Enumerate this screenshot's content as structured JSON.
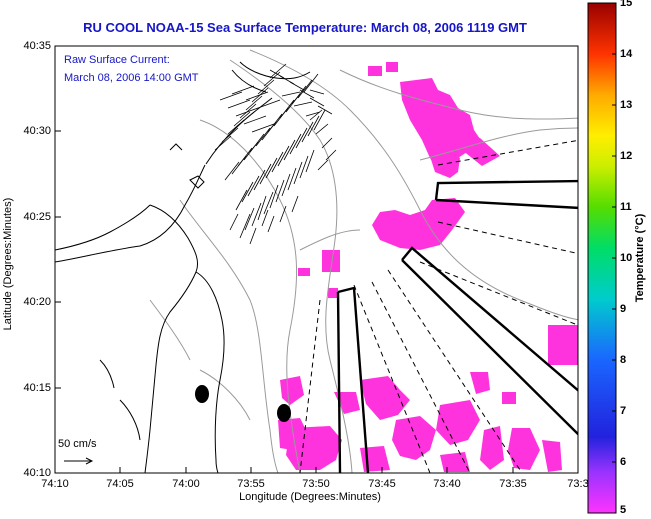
{
  "title": "RU COOL  NOAA-15  Sea Surface Temperature:  March 08, 2006 1119 GMT",
  "annotations": {
    "current_label": "Raw Surface Current:",
    "current_time": "March 08, 2006 14:00 GMT",
    "scale_label": "50 cm/s"
  },
  "axes": {
    "x_title": "Longitude (Degrees:Minutes)",
    "y_title": "Latitude (Degrees:Minutes)",
    "x_ticks": [
      "74:10",
      "74:05",
      "74:00",
      "73:55",
      "73:50",
      "73:45",
      "73:40",
      "73:35",
      "73:3"
    ],
    "y_ticks": [
      "40:35",
      "40:30",
      "40:25",
      "40:20",
      "40:15",
      "40:10"
    ]
  },
  "colorbar": {
    "title": "Temperature (°C)",
    "ticks": [
      "15",
      "14",
      "13",
      "12",
      "11",
      "10",
      "9",
      "8",
      "7",
      "6",
      "5"
    ],
    "range": [
      5,
      15
    ]
  },
  "colors": {
    "title": "#1616c8",
    "sst_patch": "#ff33dd",
    "coast": "#000000",
    "bathymetry": "#9a9a9a"
  }
}
